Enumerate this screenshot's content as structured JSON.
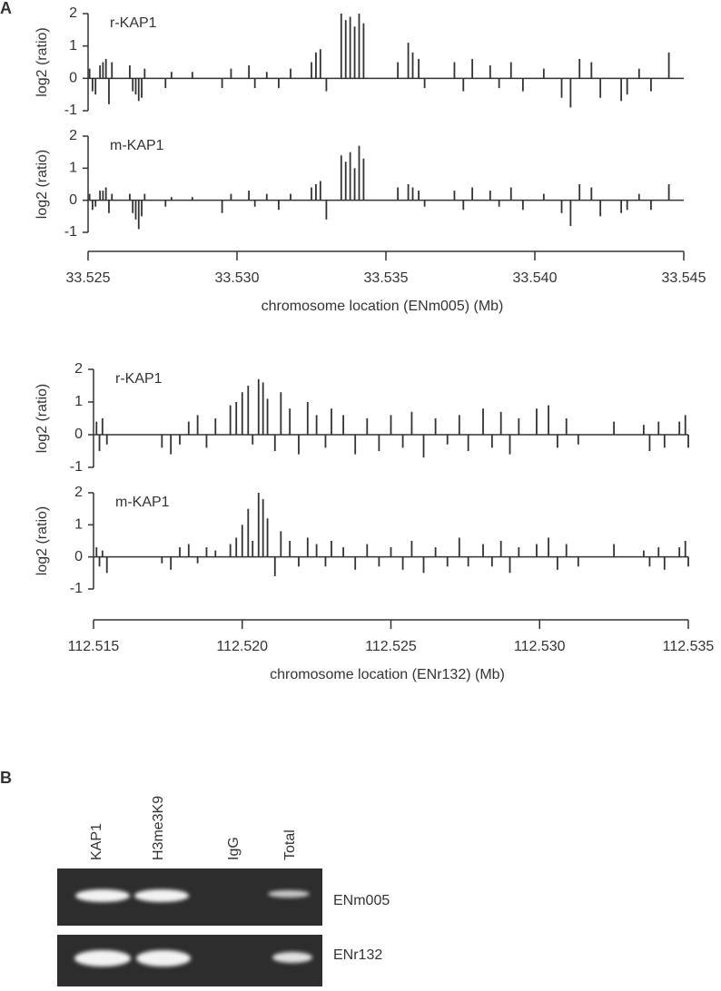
{
  "panels": [
    "A",
    "B"
  ],
  "chart_data": [
    {
      "type": "bar",
      "label": "r-KAP1",
      "ylabel": "log2 (ratio)",
      "color": "#333333",
      "xlim": [
        33.525,
        33.545
      ],
      "ylim": [
        -1,
        2
      ],
      "yticks": [
        -1,
        0,
        1,
        2
      ],
      "x": [
        33.52505,
        33.52515,
        33.52525,
        33.5254,
        33.5255,
        33.5256,
        33.5257,
        33.5258,
        33.5264,
        33.5265,
        33.5266,
        33.5267,
        33.5268,
        33.5269,
        33.5276,
        33.5278,
        33.5285,
        33.5295,
        33.5298,
        33.5304,
        33.5306,
        33.531,
        33.5314,
        33.5318,
        33.5325,
        33.53265,
        33.5328,
        33.533,
        33.5335,
        33.53365,
        33.5338,
        33.53395,
        33.5341,
        33.53425,
        33.5354,
        33.53575,
        33.5359,
        33.5361,
        33.5363,
        33.5373,
        33.5376,
        33.5379,
        33.5385,
        33.5388,
        33.5392,
        33.5396,
        33.5403,
        33.5409,
        33.5412,
        33.5415,
        33.5419,
        33.5422,
        33.5429,
        33.5431,
        33.5435,
        33.5439,
        33.5445
      ],
      "values": [
        0.3,
        -0.4,
        -0.5,
        0.4,
        0.5,
        0.6,
        -0.8,
        0.5,
        0.4,
        -0.4,
        -0.5,
        -0.7,
        -0.6,
        0.3,
        -0.3,
        0.2,
        0.2,
        -0.3,
        0.3,
        0.4,
        -0.3,
        0.2,
        -0.3,
        0.3,
        0.5,
        0.8,
        0.9,
        -0.4,
        2,
        1.8,
        1.9,
        1.6,
        2,
        1.7,
        0.5,
        1.1,
        0.8,
        0.6,
        -0.3,
        0.5,
        -0.4,
        0.6,
        0.4,
        -0.3,
        0.5,
        -0.4,
        0.3,
        -0.6,
        -0.9,
        0.6,
        0.5,
        -0.6,
        -0.7,
        -0.5,
        0.3,
        -0.4,
        0.8
      ]
    },
    {
      "type": "bar",
      "label": "m-KAP1",
      "ylabel": "log2 (ratio)",
      "color": "#333333",
      "xlim": [
        33.525,
        33.545
      ],
      "ylim": [
        -1,
        2
      ],
      "yticks": [
        -1,
        0,
        1,
        2
      ],
      "xticks": [
        33.525,
        {
          "value": 33.53,
          "label": "33.530"
        },
        33.535,
        {
          "value": 33.54,
          "label": "33.540"
        },
        33.545
      ],
      "xlabel": "chromosome location (ENm005) (Mb)",
      "x": [
        33.52505,
        33.52515,
        33.52525,
        33.5254,
        33.5255,
        33.5256,
        33.5257,
        33.5258,
        33.5264,
        33.5265,
        33.5266,
        33.5267,
        33.5268,
        33.5269,
        33.5276,
        33.5278,
        33.5285,
        33.5295,
        33.5298,
        33.5304,
        33.5306,
        33.531,
        33.5314,
        33.5318,
        33.5325,
        33.53265,
        33.5328,
        33.533,
        33.5335,
        33.53365,
        33.5338,
        33.53395,
        33.5341,
        33.53425,
        33.5354,
        33.53575,
        33.5359,
        33.5361,
        33.5363,
        33.5373,
        33.5376,
        33.5379,
        33.5385,
        33.5388,
        33.5392,
        33.5396,
        33.5403,
        33.5409,
        33.5412,
        33.5415,
        33.5419,
        33.5422,
        33.5429,
        33.5431,
        33.5435,
        33.5439,
        33.5445
      ],
      "values": [
        0.2,
        -0.3,
        -0.2,
        0.3,
        0.3,
        0.4,
        -0.4,
        0.2,
        0.2,
        -0.4,
        -0.6,
        -0.9,
        -0.5,
        0.2,
        -0.2,
        0.1,
        0.1,
        -0.4,
        0.2,
        0.3,
        -0.2,
        0.2,
        -0.3,
        0.2,
        0.4,
        0.5,
        0.6,
        -0.6,
        1.4,
        1.2,
        1.5,
        1.0,
        1.7,
        1.3,
        0.4,
        0.5,
        0.4,
        0.3,
        -0.2,
        0.3,
        -0.3,
        0.4,
        0.3,
        -0.2,
        0.4,
        -0.3,
        0.2,
        -0.4,
        -0.8,
        0.5,
        0.4,
        -0.5,
        -0.4,
        -0.3,
        0.2,
        -0.3,
        0.5
      ]
    },
    {
      "type": "bar",
      "label": "r-KAP1",
      "ylabel": "log2 (ratio)",
      "color": "#333333",
      "xlim": [
        112.515,
        112.535
      ],
      "ylim": [
        -1,
        2
      ],
      "yticks": [
        -1,
        0,
        1,
        2
      ],
      "x": [
        112.5151,
        112.5152,
        112.5153,
        112.51545,
        112.5173,
        112.5176,
        112.5179,
        112.5182,
        112.5185,
        112.5188,
        112.5191,
        112.5196,
        112.5198,
        112.52,
        112.5202,
        112.52035,
        112.52055,
        112.5207,
        112.52085,
        112.5211,
        112.5213,
        112.5216,
        112.5219,
        112.5222,
        112.5225,
        112.5228,
        112.523,
        112.5234,
        112.5238,
        112.5242,
        112.5246,
        112.525,
        112.5254,
        112.5257,
        112.5261,
        112.5265,
        112.5269,
        112.5273,
        112.5276,
        112.5281,
        112.5284,
        112.5287,
        112.529,
        112.5293,
        112.5299,
        112.5303,
        112.5306,
        112.5309,
        112.5313,
        112.5325,
        112.5335,
        112.5337,
        112.534,
        112.5342,
        112.5347,
        112.5349,
        112.535
      ],
      "values": [
        0.4,
        -0.5,
        0.5,
        -0.3,
        -0.4,
        -0.6,
        -0.3,
        0.4,
        0.6,
        -0.4,
        0.5,
        0.9,
        1.0,
        1.3,
        1.5,
        -0.3,
        1.7,
        1.6,
        1.1,
        -0.5,
        1.3,
        0.8,
        -0.6,
        1.0,
        0.6,
        -0.4,
        0.8,
        0.6,
        -0.6,
        0.5,
        -0.5,
        0.6,
        -0.4,
        0.7,
        -0.7,
        0.5,
        -0.3,
        0.6,
        -0.5,
        0.8,
        -0.4,
        0.7,
        -0.6,
        0.5,
        0.8,
        0.9,
        -0.4,
        0.5,
        -0.3,
        0.4,
        0.3,
        -0.5,
        0.4,
        -0.4,
        0.4,
        0.6,
        -0.4
      ]
    },
    {
      "type": "bar",
      "label": "m-KAP1",
      "ylabel": "log2 (ratio)",
      "color": "#333333",
      "xlim": [
        112.515,
        112.535
      ],
      "ylim": [
        -1,
        2
      ],
      "yticks": [
        -1,
        0,
        1,
        2
      ],
      "xticks": [
        112.515,
        {
          "value": 112.52,
          "label": "112.520"
        },
        112.525,
        {
          "value": 112.53,
          "label": "112.530"
        },
        112.535
      ],
      "xlabel": "chromosome location (ENr132) (Mb)",
      "x": [
        112.5151,
        112.5152,
        112.5153,
        112.51545,
        112.5173,
        112.5176,
        112.5179,
        112.5182,
        112.5185,
        112.5188,
        112.5191,
        112.5196,
        112.5198,
        112.52,
        112.5202,
        112.52035,
        112.52055,
        112.5207,
        112.52085,
        112.5211,
        112.5213,
        112.5216,
        112.5219,
        112.5222,
        112.5225,
        112.5228,
        112.523,
        112.5234,
        112.5238,
        112.5242,
        112.5246,
        112.525,
        112.5254,
        112.5257,
        112.5261,
        112.5265,
        112.5269,
        112.5273,
        112.5276,
        112.5281,
        112.5284,
        112.5287,
        112.529,
        112.5293,
        112.5299,
        112.5303,
        112.5306,
        112.5309,
        112.5313,
        112.5325,
        112.5335,
        112.5337,
        112.534,
        112.5342,
        112.5347,
        112.5349,
        112.535
      ],
      "values": [
        0.3,
        -0.3,
        0.2,
        -0.5,
        -0.2,
        -0.4,
        0.3,
        0.4,
        -0.2,
        0.3,
        0.2,
        0.4,
        0.6,
        1.0,
        1.5,
        0.5,
        2.0,
        1.8,
        1.2,
        -0.6,
        0.8,
        0.5,
        -0.3,
        0.6,
        0.4,
        -0.3,
        0.5,
        0.3,
        -0.4,
        0.4,
        -0.3,
        0.3,
        -0.4,
        0.5,
        -0.5,
        0.3,
        -0.3,
        0.6,
        -0.3,
        0.4,
        -0.3,
        0.5,
        -0.5,
        0.3,
        0.4,
        0.6,
        -0.4,
        0.4,
        -0.3,
        0.4,
        0.2,
        -0.3,
        0.3,
        -0.4,
        0.3,
        0.5,
        -0.3
      ]
    }
  ],
  "gel": {
    "lanes": [
      "KAP1",
      "H3me3K9",
      "IgG",
      "Total"
    ],
    "rows": [
      "ENm005",
      "ENr132"
    ]
  }
}
